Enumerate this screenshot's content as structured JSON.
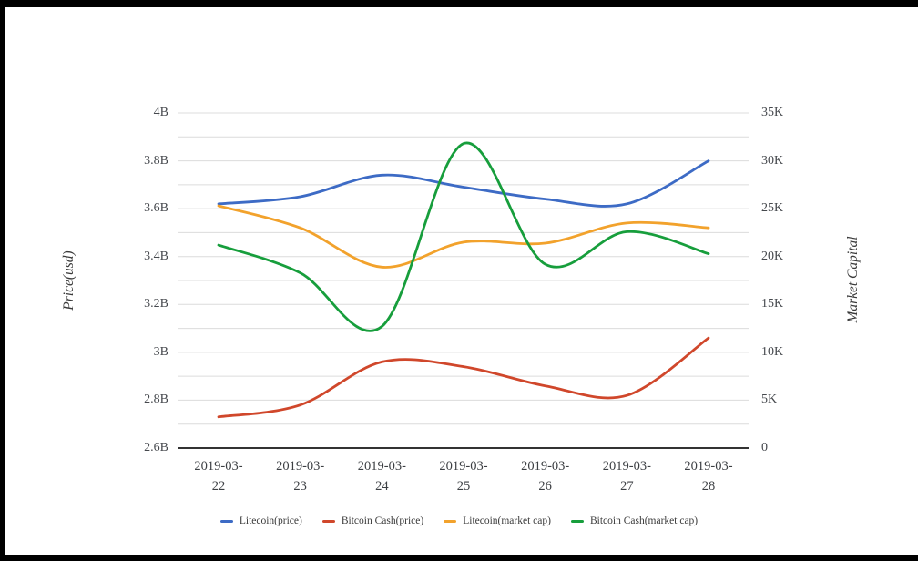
{
  "chart_data": {
    "type": "line",
    "smooth": true,
    "grid": true,
    "legend_position": "bottom",
    "title": "",
    "xlabel": "",
    "ylabel_left": "Price(usd)",
    "ylabel_right": "Market Capital",
    "x": [
      "2019-03-22",
      "2019-03-23",
      "2019-03-24",
      "2019-03-25",
      "2019-03-26",
      "2019-03-27",
      "2019-03-28"
    ],
    "left_axis": {
      "min": 2.6,
      "max": 4.0,
      "unit": "B",
      "ticks": [
        "4B",
        "3.8B",
        "3.6B",
        "3.4B",
        "3.2B",
        "3B",
        "2.8B",
        "2.6B"
      ]
    },
    "right_axis": {
      "min": 0,
      "max": 35,
      "unit": "K",
      "ticks": [
        "35K",
        "30K",
        "25K",
        "20K",
        "15K",
        "10K",
        "5K",
        "0"
      ]
    },
    "series": [
      {
        "name": "Litecoin(price)",
        "axis": "left",
        "color": "#3d6bc5",
        "values": [
          3.62,
          3.65,
          3.74,
          3.69,
          3.64,
          3.62,
          3.8
        ]
      },
      {
        "name": "Bitcoin Cash(price)",
        "axis": "left",
        "color": "#d0472b",
        "values": [
          2.73,
          2.78,
          2.96,
          2.94,
          2.86,
          2.82,
          3.06
        ]
      },
      {
        "name": "Litecoin(market cap)",
        "axis": "right",
        "color": "#f2a22c",
        "values": [
          25.3,
          23.0,
          18.9,
          21.5,
          21.4,
          23.5,
          23.0
        ]
      },
      {
        "name": "Bitcoin Cash(market cap)",
        "axis": "right",
        "color": "#179e3c",
        "values": [
          21.2,
          18.3,
          12.7,
          31.8,
          19.2,
          22.6,
          20.3
        ]
      }
    ],
    "colors": {
      "grid_line": "#dcdcdc",
      "axis_line": "#333333",
      "tick_text": "#45484d",
      "frame": "#000000"
    }
  }
}
